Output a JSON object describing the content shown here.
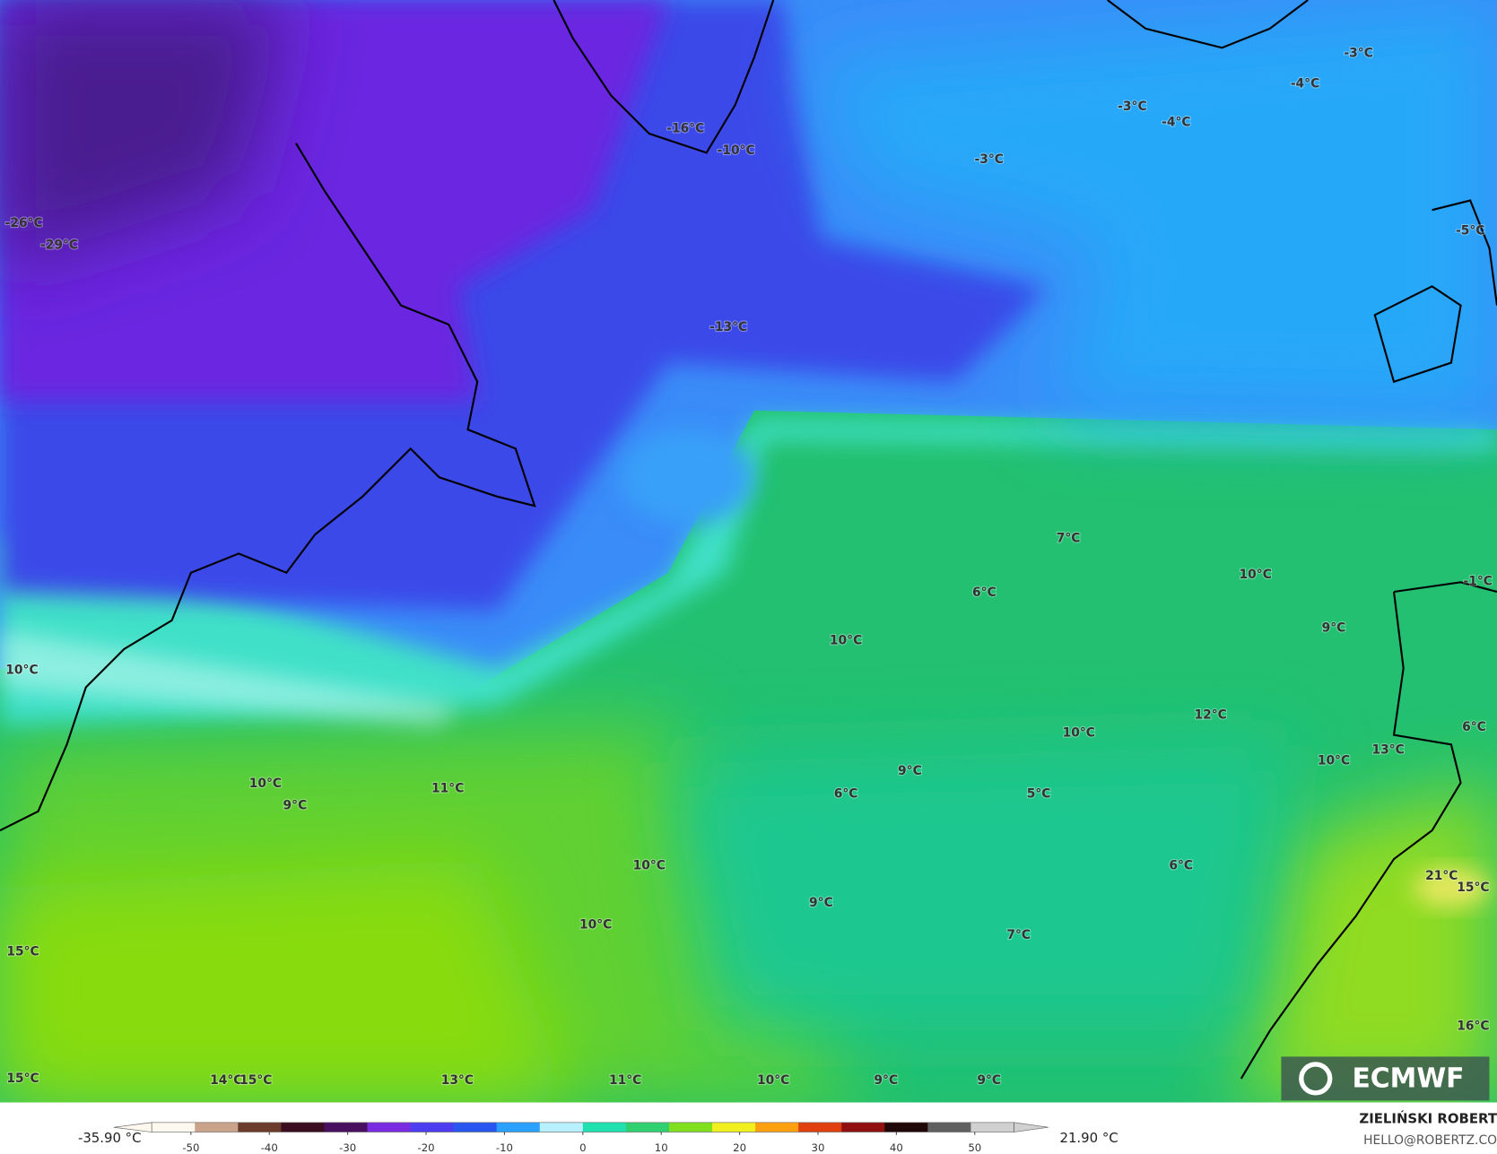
{
  "map": {
    "labels": [
      "-3°C",
      "-4°C",
      "-3°C",
      "-4°C",
      "-3°C",
      "-16°C",
      "-10°C",
      "-26°C",
      "-29°C",
      "-5°C",
      "-13°C",
      "7°C",
      "10°C",
      "-1°C",
      "6°C",
      "9°C",
      "10°C",
      "10°C",
      "12°C",
      "10°C",
      "6°C",
      "13°C",
      "10°C",
      "10°C",
      "11°C",
      "9°C",
      "9°C",
      "6°C",
      "5°C",
      "10°C",
      "6°C",
      "21°C",
      "15°C",
      "9°C",
      "10°C",
      "7°C",
      "15°C",
      "16°C",
      "15°C",
      "14°C",
      "15°C",
      "13°C",
      "11°C",
      "10°C",
      "9°C",
      "9°C"
    ],
    "logo": "ECMWF"
  },
  "colorbar": {
    "min_label": "-35.90 °C",
    "max_label": "21.90 °C",
    "lim": [
      -55,
      55
    ],
    "ticks": [
      -50,
      -40,
      -30,
      -20,
      -10,
      0,
      10,
      20,
      30,
      40,
      50
    ],
    "colors": [
      "#fff8ee",
      "#c9a38a",
      "#6b3b2c",
      "#3b0d20",
      "#4a1060",
      "#7a2ce0",
      "#4c3ef0",
      "#2a56f0",
      "#2aa0ff",
      "#b8f0ff",
      "#20e0b0",
      "#30d070",
      "#80e020",
      "#f0f020",
      "#ffa010",
      "#e04010",
      "#901010",
      "#200808",
      "#606060",
      "#d0d0d0"
    ]
  },
  "footer": {
    "author": "ZIELIŃSKI ROBERT",
    "email": "HELLO@ROBERTZ.CO"
  }
}
